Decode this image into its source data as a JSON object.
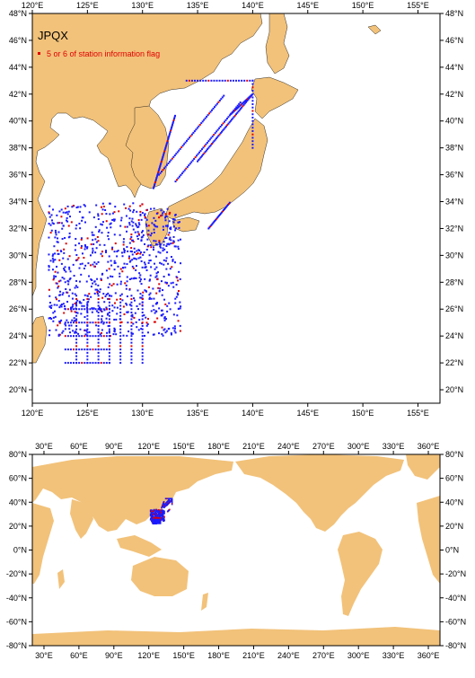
{
  "top_map": {
    "title": "JPQX",
    "legend_label": "5 or 6 of station information flag",
    "lon_ticks": [
      "120°E",
      "125°E",
      "130°E",
      "135°E",
      "140°E",
      "145°E",
      "150°E",
      "155°E"
    ],
    "lat_ticks": [
      "20°N",
      "22°N",
      "24°N",
      "26°N",
      "28°N",
      "30°N",
      "32°N",
      "34°N",
      "36°N",
      "38°N",
      "40°N",
      "42°N",
      "44°N",
      "46°N",
      "48°N"
    ],
    "lon_range": [
      120,
      157
    ],
    "lat_range": [
      19,
      48
    ]
  },
  "bottom_map": {
    "lon_ticks": [
      "30°E",
      "60°E",
      "90°E",
      "120°E",
      "150°E",
      "180°E",
      "210°E",
      "240°E",
      "270°E",
      "300°E",
      "330°E",
      "360°E"
    ],
    "lat_ticks": [
      "-80°N",
      "-60°N",
      "-40°N",
      "-20°N",
      "0°N",
      "20°N",
      "40°N",
      "60°N",
      "80°N"
    ],
    "lon_range": [
      20,
      370
    ],
    "lat_range": [
      -80,
      80
    ]
  },
  "colors": {
    "land": "#f2c27a",
    "station": "#1a1aff",
    "flagged": "#e00000"
  }
}
